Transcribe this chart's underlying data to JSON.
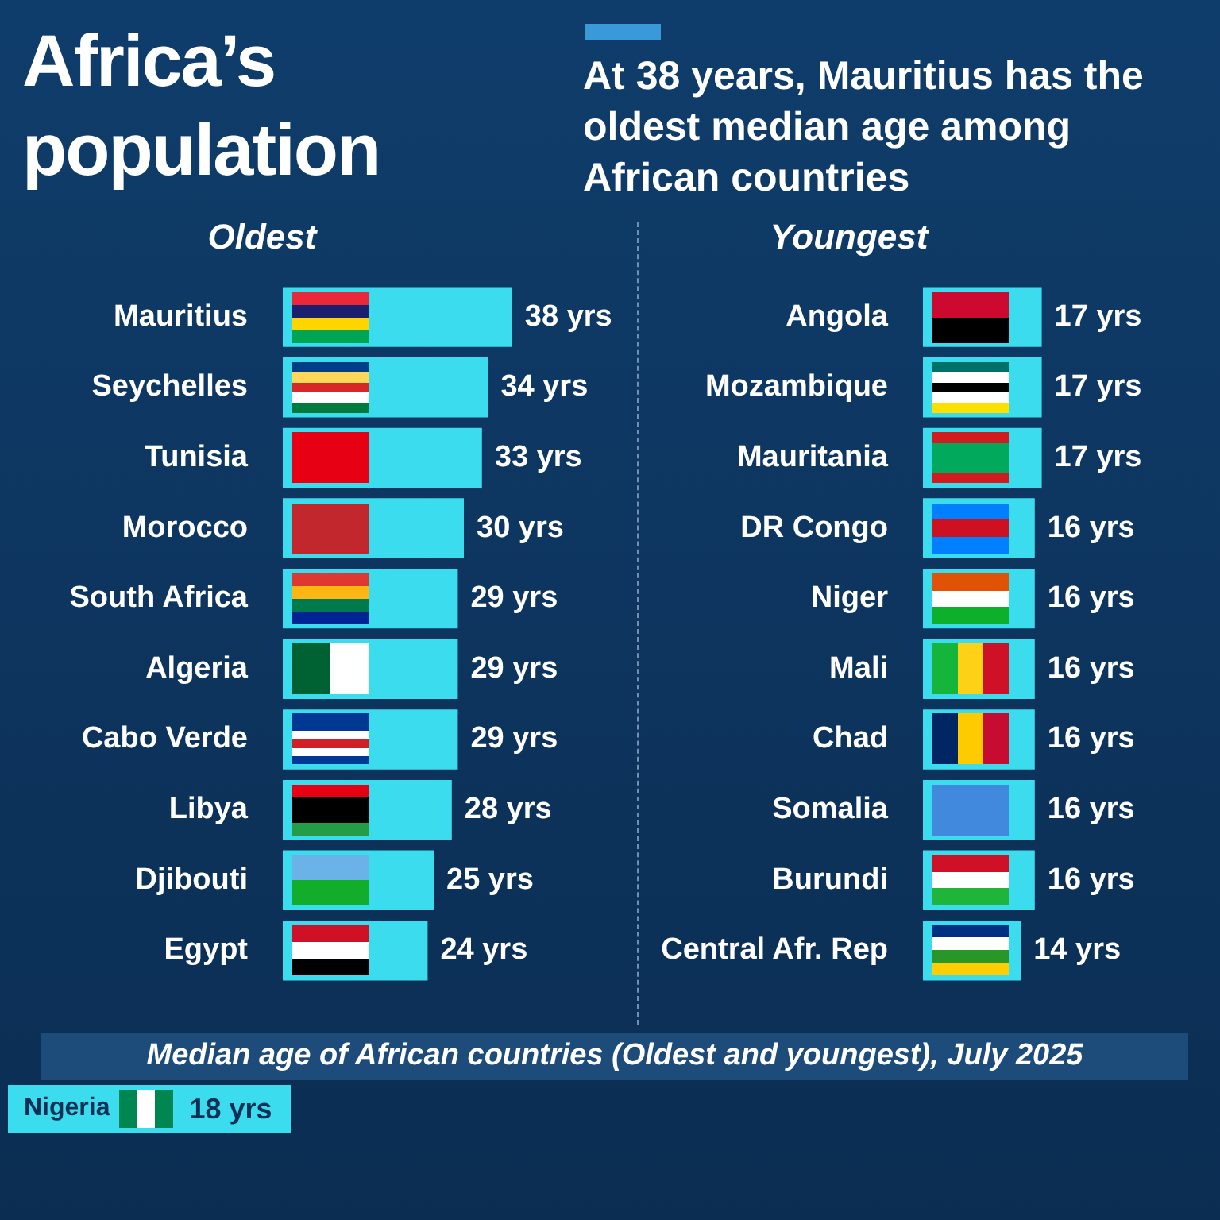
{
  "chart_data": [
    {
      "type": "other",
      "title": "Africa’s population",
      "subtitle": "At 38 years, Mauritius has the oldest median age among African countries"
    },
    {
      "type": "bar",
      "orientation": "horizontal",
      "title": "Oldest",
      "categories": [
        "Mauritius",
        "Seychelles",
        "Tunisia",
        "Morocco",
        "South Africa",
        "Algeria",
        "Cabo Verde",
        "Libya",
        "Djibouti",
        "Egypt"
      ],
      "values": [
        38,
        34,
        33,
        30,
        29,
        29,
        29,
        28,
        25,
        24
      ],
      "value_labels": [
        "38 yrs",
        "34 yrs",
        "33 yrs",
        "30 yrs",
        "29 yrs",
        "29 yrs",
        "29 yrs",
        "28 yrs",
        "25 yrs",
        "24 yrs"
      ],
      "color": "#3adcee",
      "tick_labels": "y"
    },
    {
      "type": "bar",
      "orientation": "horizontal",
      "title": "Youngest",
      "categories": [
        "Angola",
        "Mozambique",
        "Mauritania",
        "DR Congo",
        "Niger",
        "Mali",
        "Chad",
        "Somalia",
        "Burundi",
        "Central Afr. Rep"
      ],
      "values": [
        17,
        17,
        17,
        16,
        16,
        16,
        16,
        16,
        16,
        14
      ],
      "value_labels": [
        "17 yrs",
        "17 yrs",
        "17 yrs",
        "16 yrs",
        "16 yrs",
        "16 yrs",
        "16 yrs",
        "16 yrs",
        "16 yrs",
        "14 yrs"
      ],
      "color": "#3adcee",
      "tick_labels": "y"
    },
    {
      "type": "other",
      "title": "Median age of African countries (Oldest and youngest), July 2025",
      "categories": [
        "Nigeria"
      ],
      "value_labels": [
        "18 yrs"
      ],
      "colors": [
        "#3adcee"
      ]
    }
  ]
}
